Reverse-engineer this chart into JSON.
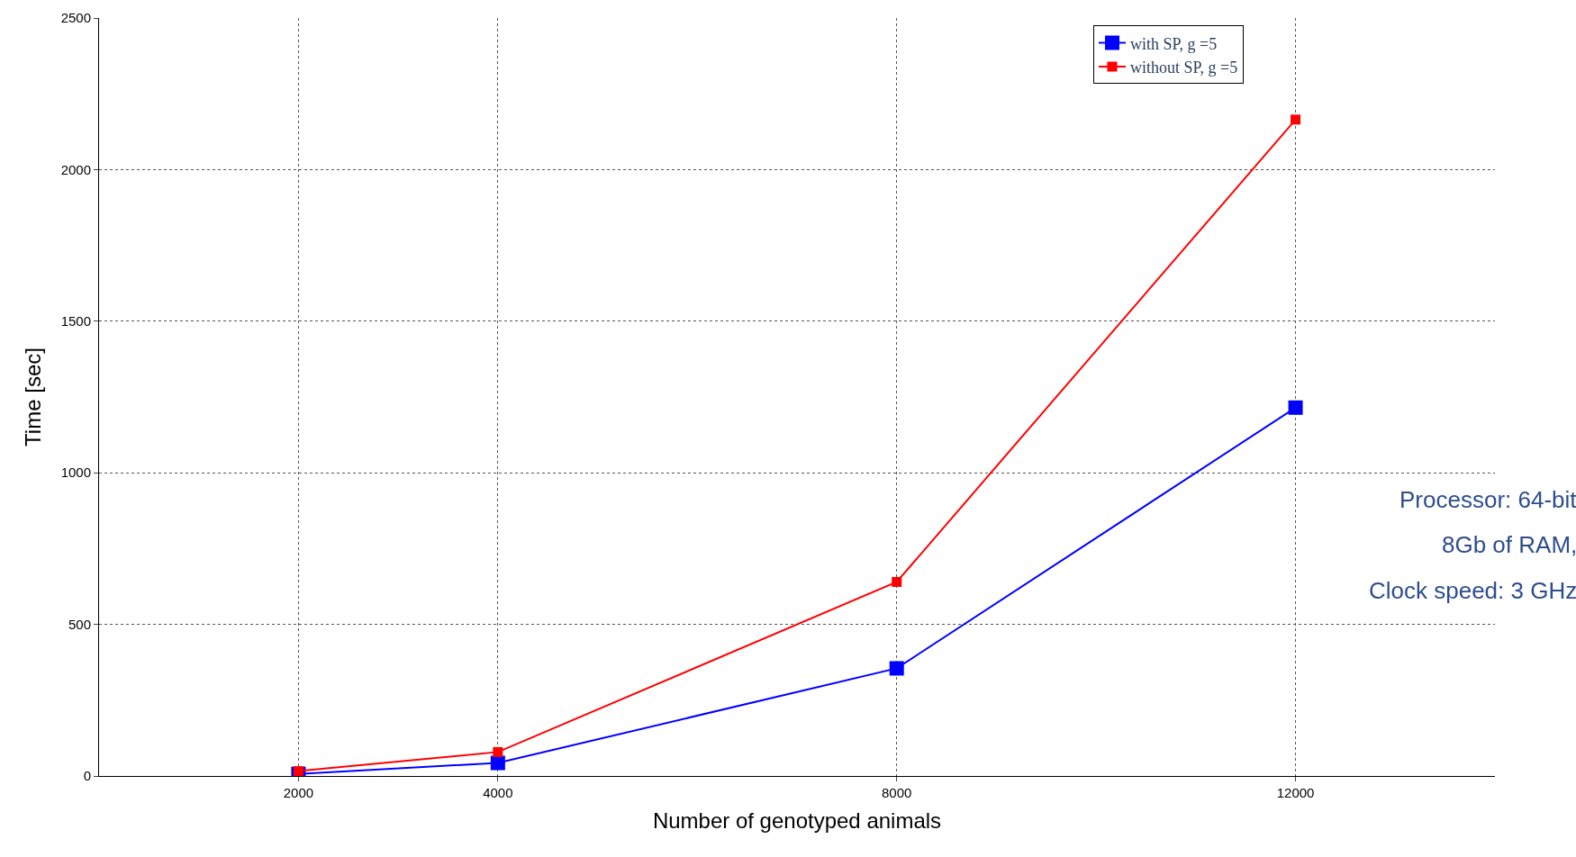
{
  "chart_data": {
    "type": "line",
    "xlabel": "Number of genotyped animals",
    "ylabel": "Time [sec]",
    "x": [
      2000,
      4000,
      8000,
      12000
    ],
    "series": [
      {
        "name": "with SP, g =5",
        "color": "#0000ff",
        "values": [
          7,
          43,
          355,
          1215
        ]
      },
      {
        "name": "without SP, g =5",
        "color": "#ff0000",
        "values": [
          16,
          79,
          640,
          2165
        ]
      }
    ],
    "xlim": [
      0,
      14000
    ],
    "xticks": [
      2000,
      4000,
      8000,
      12000
    ],
    "ylim": [
      0,
      2500
    ],
    "yticks": [
      0,
      500,
      1000,
      1500,
      2000,
      2500
    ],
    "grid": true,
    "legend": "top right",
    "marker": "square",
    "line_style": "solid",
    "annotations": [
      "Processor: 64-bit",
      "8Gb of RAM,",
      "Clock speed: 3 GHz"
    ]
  }
}
